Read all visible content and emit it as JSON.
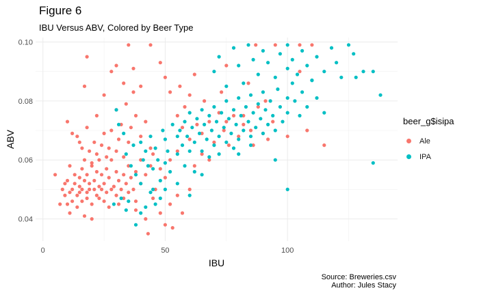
{
  "title": "Figure 6",
  "subtitle": "IBU Versus ABV, Colored by Beer Type",
  "caption": [
    "Source: Breweries.csv",
    "Author: Jules Stacy"
  ],
  "legend": {
    "title": "beer_g$isipa",
    "items": [
      {
        "label": "Ale",
        "color": "#F8766D"
      },
      {
        "label": "IPA",
        "color": "#00BFC4"
      }
    ]
  },
  "chart_data": {
    "type": "scatter",
    "xlabel": "IBU",
    "ylabel": "ABV",
    "xlim": [
      -3,
      145
    ],
    "ylim": [
      0.0325,
      0.1015
    ],
    "xticks": [
      0,
      50,
      100
    ],
    "yticks": [
      0.04,
      0.06,
      0.08,
      0.1
    ],
    "xtick_labels": [
      "0",
      "50",
      "100"
    ],
    "ytick_labels": [
      "0.04",
      "0.06",
      "0.08",
      "0.10"
    ],
    "grid": true,
    "legend_position": "right",
    "series": [
      {
        "name": "Ale",
        "color": "#F8766D",
        "points": [
          [
            5,
            0.055
          ],
          [
            7,
            0.045
          ],
          [
            8,
            0.05
          ],
          [
            9,
            0.048
          ],
          [
            9,
            0.052
          ],
          [
            10,
            0.045
          ],
          [
            10,
            0.053
          ],
          [
            11,
            0.049
          ],
          [
            11,
            0.058
          ],
          [
            11,
            0.042
          ],
          [
            12,
            0.046
          ],
          [
            12,
            0.05
          ],
          [
            13,
            0.055
          ],
          [
            13,
            0.052
          ],
          [
            14,
            0.048
          ],
          [
            14,
            0.044
          ],
          [
            15,
            0.049
          ],
          [
            15,
            0.051
          ],
          [
            15,
            0.054
          ],
          [
            16,
            0.046
          ],
          [
            16,
            0.05
          ],
          [
            16,
            0.057
          ],
          [
            17,
            0.053
          ],
          [
            17,
            0.041
          ],
          [
            18,
            0.049
          ],
          [
            18,
            0.055
          ],
          [
            18,
            0.047
          ],
          [
            19,
            0.05
          ],
          [
            19,
            0.052
          ],
          [
            20,
            0.045
          ],
          [
            20,
            0.058
          ],
          [
            20,
            0.04
          ],
          [
            21,
            0.05
          ],
          [
            21,
            0.053
          ],
          [
            22,
            0.048
          ],
          [
            22,
            0.056
          ],
          [
            23,
            0.051
          ],
          [
            23,
            0.047
          ],
          [
            24,
            0.05
          ],
          [
            24,
            0.055
          ],
          [
            25,
            0.052
          ],
          [
            25,
            0.046
          ],
          [
            26,
            0.049
          ],
          [
            26,
            0.057
          ],
          [
            27,
            0.054
          ],
          [
            27,
            0.044
          ],
          [
            28,
            0.05
          ],
          [
            28,
            0.06
          ],
          [
            29,
            0.051
          ],
          [
            30,
            0.048
          ],
          [
            30,
            0.056
          ],
          [
            31,
            0.053
          ],
          [
            31,
            0.045
          ],
          [
            32,
            0.05
          ],
          [
            33,
            0.055
          ],
          [
            33,
            0.047
          ],
          [
            34,
            0.052
          ],
          [
            35,
            0.049
          ],
          [
            35,
            0.058
          ],
          [
            36,
            0.054
          ],
          [
            37,
            0.05
          ],
          [
            38,
            0.056
          ],
          [
            38,
            0.046
          ],
          [
            40,
            0.052
          ],
          [
            40,
            0.06
          ],
          [
            42,
            0.055
          ],
          [
            44,
            0.058
          ],
          [
            45,
            0.062
          ],
          [
            46,
            0.05
          ],
          [
            48,
            0.057
          ],
          [
            50,
            0.054
          ],
          [
            52,
            0.06
          ],
          [
            55,
            0.063
          ],
          [
            10,
            0.073
          ],
          [
            12,
            0.069
          ],
          [
            14,
            0.068
          ],
          [
            15,
            0.066
          ],
          [
            16,
            0.064
          ],
          [
            17,
            0.06
          ],
          [
            18,
            0.071
          ],
          [
            19,
            0.063
          ],
          [
            20,
            0.059
          ],
          [
            21,
            0.066
          ],
          [
            22,
            0.062
          ],
          [
            22,
            0.075
          ],
          [
            23,
            0.06
          ],
          [
            24,
            0.065
          ],
          [
            25,
            0.069
          ],
          [
            26,
            0.061
          ],
          [
            27,
            0.064
          ],
          [
            28,
            0.07
          ],
          [
            30,
            0.063
          ],
          [
            30,
            0.077
          ],
          [
            31,
            0.067
          ],
          [
            32,
            0.072
          ],
          [
            33,
            0.061
          ],
          [
            34,
            0.079
          ],
          [
            35,
            0.066
          ],
          [
            36,
            0.071
          ],
          [
            37,
            0.083
          ],
          [
            38,
            0.075
          ],
          [
            40,
            0.068
          ],
          [
            42,
            0.073
          ],
          [
            44,
            0.064
          ],
          [
            17,
            0.085
          ],
          [
            18,
            0.095
          ],
          [
            25,
            0.082
          ],
          [
            28,
            0.09
          ],
          [
            30,
            0.092
          ],
          [
            33,
            0.086
          ],
          [
            35,
            0.099
          ],
          [
            37,
            0.091
          ],
          [
            40,
            0.085
          ],
          [
            44,
            0.099
          ],
          [
            48,
            0.093
          ],
          [
            50,
            0.088
          ],
          [
            52,
            0.083
          ],
          [
            55,
            0.075
          ],
          [
            56,
            0.085
          ],
          [
            57,
            0.071
          ],
          [
            58,
            0.078
          ],
          [
            60,
            0.067
          ],
          [
            60,
            0.082
          ],
          [
            62,
            0.089
          ],
          [
            63,
            0.072
          ],
          [
            65,
            0.069
          ],
          [
            66,
            0.08
          ],
          [
            68,
            0.073
          ],
          [
            70,
            0.066
          ],
          [
            72,
            0.076
          ],
          [
            73,
            0.083
          ],
          [
            74,
            0.07
          ],
          [
            75,
            0.092
          ],
          [
            76,
            0.065
          ],
          [
            78,
            0.075
          ],
          [
            80,
            0.068
          ],
          [
            82,
            0.072
          ],
          [
            84,
            0.086
          ],
          [
            85,
            0.07
          ],
          [
            86,
            0.065
          ],
          [
            88,
            0.078
          ],
          [
            90,
            0.069
          ],
          [
            91,
            0.08
          ],
          [
            92,
            0.067
          ],
          [
            94,
            0.073
          ],
          [
            100,
            0.068
          ],
          [
            105,
            0.09
          ],
          [
            108,
            0.07
          ],
          [
            115,
            0.065
          ],
          [
            38,
            0.043
          ],
          [
            42,
            0.04
          ],
          [
            45,
            0.047
          ],
          [
            48,
            0.042
          ],
          [
            50,
            0.038
          ],
          [
            52,
            0.045
          ],
          [
            55,
            0.048
          ],
          [
            57,
            0.042
          ],
          [
            43,
            0.035
          ],
          [
            53,
            0.037
          ],
          [
            60,
            0.05
          ],
          [
            62,
            0.058
          ],
          [
            65,
            0.062
          ],
          [
            68,
            0.06
          ],
          [
            75,
            0.073
          ],
          [
            82,
            0.075
          ],
          [
            87,
            0.099
          ],
          [
            95,
            0.099
          ],
          [
            105,
            0.099
          ],
          [
            110,
            0.099
          ]
        ]
      },
      {
        "name": "IPA",
        "color": "#00BFC4",
        "points": [
          [
            30,
            0.077
          ],
          [
            31,
            0.072
          ],
          [
            33,
            0.069
          ],
          [
            34,
            0.062
          ],
          [
            36,
            0.058
          ],
          [
            37,
            0.065
          ],
          [
            38,
            0.055
          ],
          [
            40,
            0.066
          ],
          [
            40,
            0.052
          ],
          [
            41,
            0.06
          ],
          [
            42,
            0.063
          ],
          [
            43,
            0.058
          ],
          [
            44,
            0.068
          ],
          [
            45,
            0.057
          ],
          [
            45,
            0.05
          ],
          [
            46,
            0.064
          ],
          [
            47,
            0.06
          ],
          [
            48,
            0.053
          ],
          [
            49,
            0.07
          ],
          [
            50,
            0.067
          ],
          [
            50,
            0.059
          ],
          [
            51,
            0.063
          ],
          [
            52,
            0.056
          ],
          [
            53,
            0.072
          ],
          [
            55,
            0.068
          ],
          [
            55,
            0.062
          ],
          [
            29,
            0.045
          ],
          [
            32,
            0.047
          ],
          [
            34,
            0.043
          ],
          [
            35,
            0.046
          ],
          [
            38,
            0.038
          ],
          [
            40,
            0.042
          ],
          [
            42,
            0.044
          ],
          [
            44,
            0.049
          ],
          [
            46,
            0.045
          ],
          [
            48,
            0.047
          ],
          [
            50,
            0.05
          ],
          [
            55,
            0.052
          ],
          [
            58,
            0.058
          ],
          [
            60,
            0.048
          ],
          [
            62,
            0.056
          ],
          [
            65,
            0.055
          ],
          [
            56,
            0.07
          ],
          [
            57,
            0.065
          ],
          [
            58,
            0.073
          ],
          [
            59,
            0.068
          ],
          [
            60,
            0.063
          ],
          [
            60,
            0.076
          ],
          [
            61,
            0.071
          ],
          [
            62,
            0.066
          ],
          [
            63,
            0.074
          ],
          [
            64,
            0.069
          ],
          [
            65,
            0.063
          ],
          [
            65,
            0.077
          ],
          [
            66,
            0.072
          ],
          [
            67,
            0.067
          ],
          [
            68,
            0.075
          ],
          [
            68,
            0.061
          ],
          [
            69,
            0.07
          ],
          [
            70,
            0.065
          ],
          [
            70,
            0.078
          ],
          [
            71,
            0.073
          ],
          [
            72,
            0.068
          ],
          [
            72,
            0.062
          ],
          [
            73,
            0.076
          ],
          [
            74,
            0.071
          ],
          [
            75,
            0.066
          ],
          [
            75,
            0.08
          ],
          [
            76,
            0.074
          ],
          [
            77,
            0.069
          ],
          [
            78,
            0.064
          ],
          [
            78,
            0.077
          ],
          [
            79,
            0.072
          ],
          [
            80,
            0.067
          ],
          [
            80,
            0.081
          ],
          [
            81,
            0.075
          ],
          [
            82,
            0.07
          ],
          [
            83,
            0.078
          ],
          [
            84,
            0.073
          ],
          [
            85,
            0.068
          ],
          [
            85,
            0.082
          ],
          [
            86,
            0.076
          ],
          [
            87,
            0.071
          ],
          [
            88,
            0.079
          ],
          [
            89,
            0.074
          ],
          [
            90,
            0.069
          ],
          [
            90,
            0.083
          ],
          [
            91,
            0.077
          ],
          [
            92,
            0.072
          ],
          [
            93,
            0.08
          ],
          [
            94,
            0.075
          ],
          [
            95,
            0.07
          ],
          [
            96,
            0.084
          ],
          [
            97,
            0.078
          ],
          [
            98,
            0.073
          ],
          [
            100,
            0.081
          ],
          [
            100,
            0.076
          ],
          [
            102,
            0.086
          ],
          [
            103,
            0.08
          ],
          [
            105,
            0.075
          ],
          [
            106,
            0.083
          ],
          [
            108,
            0.078
          ],
          [
            110,
            0.087
          ],
          [
            112,
            0.081
          ],
          [
            115,
            0.076
          ],
          [
            70,
            0.09
          ],
          [
            72,
            0.095
          ],
          [
            75,
            0.085
          ],
          [
            78,
            0.098
          ],
          [
            80,
            0.092
          ],
          [
            82,
            0.086
          ],
          [
            84,
            0.099
          ],
          [
            86,
            0.094
          ],
          [
            88,
            0.089
          ],
          [
            90,
            0.097
          ],
          [
            92,
            0.093
          ],
          [
            95,
            0.088
          ],
          [
            97,
            0.096
          ],
          [
            100,
            0.091
          ],
          [
            100,
            0.099
          ],
          [
            102,
            0.094
          ],
          [
            104,
            0.089
          ],
          [
            106,
            0.097
          ],
          [
            108,
            0.092
          ],
          [
            110,
            0.087
          ],
          [
            112,
            0.095
          ],
          [
            115,
            0.09
          ],
          [
            118,
            0.098
          ],
          [
            120,
            0.093
          ],
          [
            122,
            0.088
          ],
          [
            125,
            0.099
          ],
          [
            127,
            0.096
          ],
          [
            128,
            0.088
          ],
          [
            131,
            0.09
          ],
          [
            135,
            0.09
          ],
          [
            138,
            0.082
          ],
          [
            135,
            0.059
          ],
          [
            100,
            0.05
          ],
          [
            80,
            0.062
          ],
          [
            85,
            0.065
          ],
          [
            95,
            0.06
          ]
        ]
      }
    ]
  }
}
